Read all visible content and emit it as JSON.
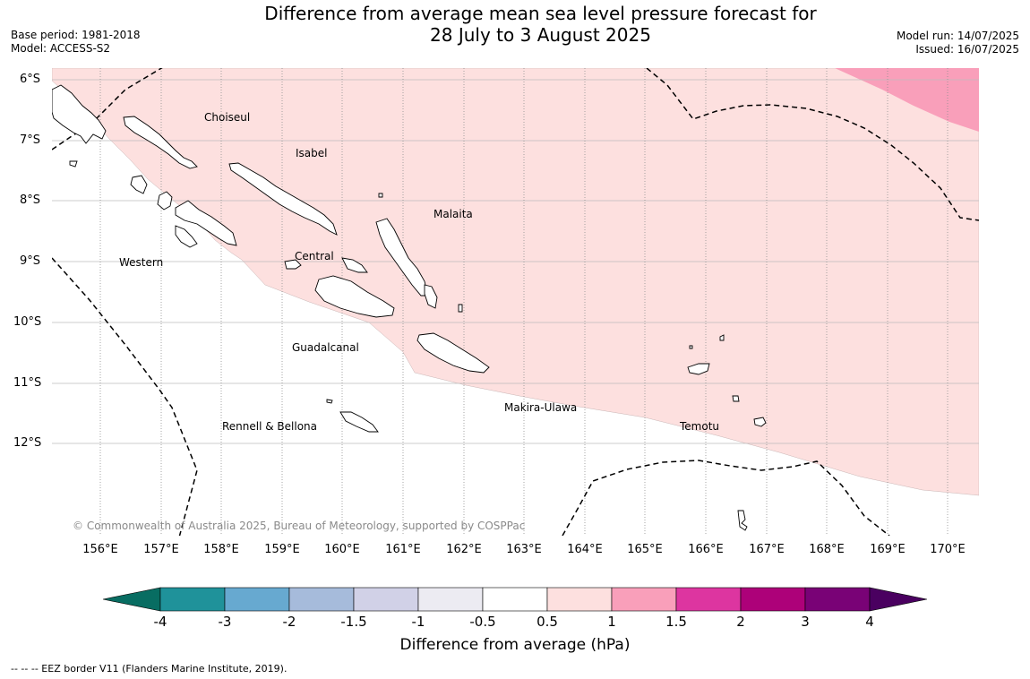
{
  "header": {
    "title_line1": "Difference from average mean sea level pressure forecast for",
    "title_line2": "28 July to 3 August 2025",
    "base_period": "Base period: 1981-2018",
    "model": "Model: ACCESS-S2",
    "model_run": "Model run: 14/07/2025",
    "issued": "Issued: 16/07/2025"
  },
  "map": {
    "lat_labels": [
      "6°S",
      "7°S",
      "8°S",
      "9°S",
      "10°S",
      "11°S",
      "12°S"
    ],
    "lon_labels": [
      "156°E",
      "157°E",
      "158°E",
      "159°E",
      "160°E",
      "161°E",
      "162°E",
      "163°E",
      "164°E",
      "165°E",
      "166°E",
      "167°E",
      "168°E",
      "169°E",
      "170°E"
    ],
    "places": {
      "choiseul": "Choiseul",
      "isabel": "Isabel",
      "malaita": "Malaita",
      "western": "Western",
      "central": "Central",
      "guadalcanal": "Guadalcanal",
      "makira": "Makira-Ulawa",
      "rennell": "Rennell & Bellona",
      "temotu": "Temotu"
    },
    "copyright": "© Commonwealth of Australia 2025, Bureau of Meteorology, supported by COSPPac",
    "anomaly_regions": [
      {
        "category": "0.5 to 1",
        "color": "#fde0df"
      },
      {
        "category": "1 to 1.5",
        "color": "#f99fba"
      }
    ]
  },
  "colorbar": {
    "ticks": [
      "-4",
      "-3",
      "-2",
      "-1.5",
      "-1",
      "-0.5",
      "0.5",
      "1",
      "1.5",
      "2",
      "3",
      "4"
    ],
    "colors": [
      "#086d62",
      "#1f929a",
      "#67a9d0",
      "#a6bbdb",
      "#d1d1e7",
      "#ecebf2",
      "#ffffff",
      "#fde0df",
      "#f99fba",
      "#dd35a0",
      "#ad0179",
      "#790276",
      "#4a0060"
    ],
    "label": "Difference from average (hPa)"
  },
  "footer": {
    "eez_note": "--  --  -- EEZ border V11 (Flanders Marine Institute, 2019)."
  }
}
